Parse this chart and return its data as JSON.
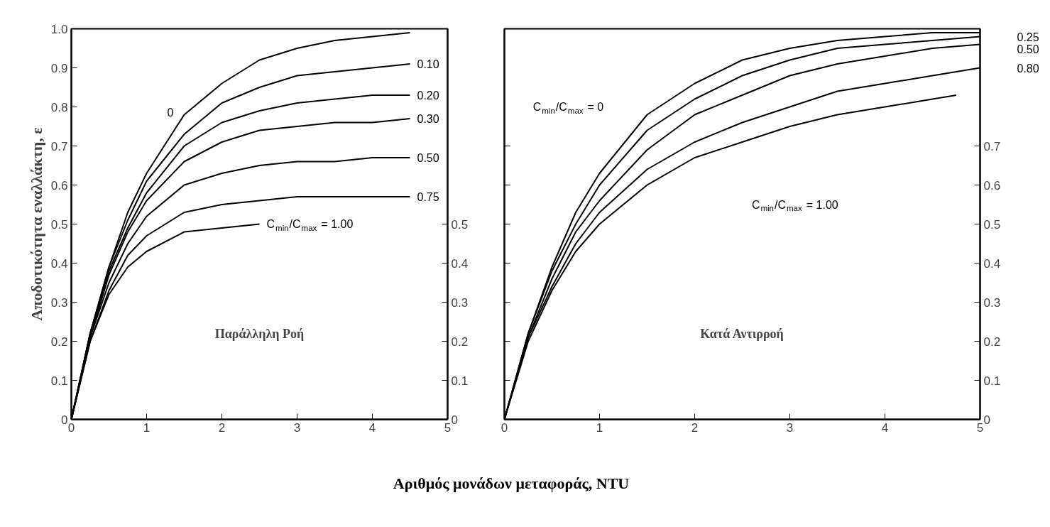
{
  "chart_data": [
    {
      "type": "line",
      "ylabel": "Αποδοτικότητα εναλλάκτη, ε",
      "xlabel": "Αριθμός μονάδων μεταφοράς, NTU",
      "annotations": [
        "Παράλληλη Ροή",
        {
          "text": "0",
          "x": 1.5,
          "y": 0.78
        }
      ],
      "x": [
        0,
        0.25,
        0.5,
        0.75,
        1,
        1.5,
        2,
        2.5,
        3,
        3.5,
        4,
        4.5
      ],
      "xlim": [
        0,
        5
      ],
      "ylim": [
        0,
        1
      ],
      "xticks": [
        0,
        1,
        2,
        3,
        4,
        5
      ],
      "yticks": [
        0,
        0.1,
        0.2,
        0.3,
        0.4,
        0.5,
        0.6,
        0.7,
        0.8,
        0.9,
        {
          "value": 1,
          "label": "1.0"
        }
      ],
      "y2lim": [
        0,
        1
      ],
      "y2ticks": [
        0,
        0.1,
        0.2,
        0.3,
        0.4,
        0.5
      ],
      "grid": false,
      "line_style": "solid",
      "marker": "none",
      "series": [
        {
          "color": "#000000",
          "values": [
            0,
            0.22,
            0.39,
            0.53,
            0.63,
            0.78,
            0.86,
            0.92,
            0.95,
            0.97,
            0.98,
            0.99
          ]
        },
        {
          "name": "0.10",
          "color": "#000000",
          "values": [
            0,
            0.22,
            0.39,
            0.51,
            0.61,
            0.73,
            0.81,
            0.85,
            0.88,
            0.89,
            0.9,
            0.91
          ]
        },
        {
          "name": "0.20",
          "color": "#000000",
          "values": [
            0,
            0.22,
            0.38,
            0.49,
            0.58,
            0.7,
            0.76,
            0.79,
            0.81,
            0.82,
            0.83,
            0.83
          ]
        },
        {
          "name": "0.30",
          "color": "#000000",
          "values": [
            0,
            0.21,
            0.37,
            0.48,
            0.56,
            0.66,
            0.71,
            0.74,
            0.75,
            0.76,
            0.76,
            0.77
          ]
        },
        {
          "name": "0.50",
          "color": "#000000",
          "values": [
            0,
            0.21,
            0.35,
            0.45,
            0.52,
            0.6,
            0.63,
            0.65,
            0.66,
            0.66,
            0.67,
            0.67
          ]
        },
        {
          "name": "0.75",
          "color": "#000000",
          "values": [
            0,
            0.2,
            0.33,
            0.42,
            0.47,
            0.53,
            0.55,
            0.56,
            0.57,
            0.57,
            0.57,
            0.57
          ]
        },
        {
          "name": "C$_{min}$/C$_{max}$ = 1.00",
          "color": "#000000",
          "x": [
            0,
            0.25,
            0.5,
            0.75,
            1,
            1.5,
            2,
            2.5
          ],
          "values": [
            0,
            0.2,
            0.32,
            0.39,
            0.43,
            0.48,
            0.49,
            0.5
          ]
        }
      ]
    },
    {
      "type": "line",
      "annotations": [
        "Κατά Αντιρροή",
        "C$_{min}$/C$_{max}$ = 0",
        "C$_{min}$/C$_{max}$ = 1.00"
      ],
      "x": [
        0,
        0.25,
        0.5,
        0.75,
        1,
        1.5,
        2,
        2.5,
        3,
        3.5,
        4,
        4.5,
        5
      ],
      "xlim": [
        0,
        5
      ],
      "xticks": [
        0,
        1,
        2,
        3,
        4,
        5
      ],
      "y2lim": [
        0,
        1
      ],
      "y2ticks": [
        0,
        0.1,
        0.2,
        0.3,
        0.4,
        0.5,
        0.6,
        0.7
      ],
      "grid": false,
      "line_style": "solid",
      "marker": "none",
      "series": [
        {
          "axis": "y2",
          "color": "#000000",
          "values": [
            0,
            0.22,
            0.39,
            0.53,
            0.63,
            0.78,
            0.86,
            0.92,
            0.95,
            0.97,
            0.98,
            0.99,
            0.99
          ]
        },
        {
          "axis": "y2",
          "name": "0.25",
          "color": "#000000",
          "values": [
            0,
            0.22,
            0.38,
            0.5,
            0.6,
            0.74,
            0.82,
            0.88,
            0.92,
            0.95,
            0.96,
            0.97,
            0.98
          ]
        },
        {
          "axis": "y2",
          "name": "0.50",
          "color": "#000000",
          "values": [
            0,
            0.21,
            0.36,
            0.48,
            0.56,
            0.69,
            0.78,
            0.83,
            0.88,
            0.91,
            0.93,
            0.95,
            0.96
          ]
        },
        {
          "axis": "y2",
          "name": "0.80",
          "color": "#000000",
          "values": [
            0,
            0.21,
            0.34,
            0.45,
            0.53,
            0.64,
            0.71,
            0.76,
            0.8,
            0.84,
            0.86,
            0.88,
            0.9
          ]
        },
        {
          "axis": "y2",
          "color": "#000000",
          "x": [
            0,
            0.25,
            0.5,
            0.75,
            1,
            1.5,
            2,
            2.5,
            3,
            3.5,
            4,
            4.5,
            4.75
          ],
          "values": [
            0,
            0.2,
            0.33,
            0.43,
            0.5,
            0.6,
            0.67,
            0.71,
            0.75,
            0.78,
            0.8,
            0.82,
            0.83
          ]
        }
      ]
    }
  ]
}
